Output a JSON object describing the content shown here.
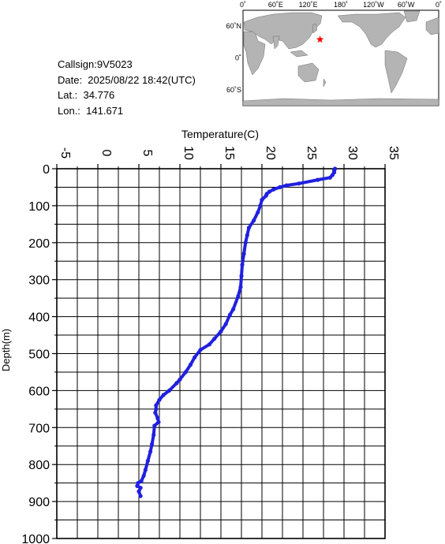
{
  "info": {
    "callsign": "Callsign:9V5023",
    "date": "Date:  2025/08/22 18:42(UTC)",
    "lat": "Lat.:  34.776",
    "lon": "Lon.:  141.671"
  },
  "map": {
    "top_labels": [
      "0˚",
      "60˚E",
      "120˚E",
      "180˚",
      "120˚W",
      "60˚W",
      "0˚"
    ],
    "left_labels": [
      "60˚N",
      "0˚",
      "60˚S"
    ],
    "marker": {
      "lat": 34.776,
      "lon": 141.671,
      "color": "#ff0000"
    },
    "land_color": "#b4b4b4",
    "ocean_color": "#ffffff"
  },
  "chart_data": {
    "type": "line",
    "xlabel": "Temperature(C)",
    "ylabel": "Depth(m)",
    "xlim": [
      -5,
      35
    ],
    "ylim": [
      0,
      1000
    ],
    "y_inverted": true,
    "x_axis_position": "top",
    "xticks": [
      "-5",
      "0",
      "5",
      "10",
      "15",
      "20",
      "25",
      "30",
      "35"
    ],
    "yticks": [
      "0",
      "100",
      "200",
      "300",
      "400",
      "500",
      "600",
      "700",
      "800",
      "900",
      "1000"
    ],
    "grid": true,
    "line_color": "#2020e0",
    "series": [
      {
        "points": [
          [
            28.9,
            0
          ],
          [
            28.8,
            5
          ],
          [
            28.8,
            10
          ],
          [
            28.6,
            17
          ],
          [
            28.3,
            24
          ],
          [
            26.8,
            30
          ],
          [
            24.5,
            40
          ],
          [
            23.0,
            45
          ],
          [
            22.2,
            50
          ],
          [
            21.4,
            56
          ],
          [
            20.9,
            62
          ],
          [
            20.6,
            68
          ],
          [
            20.5,
            73
          ],
          [
            20.0,
            84
          ],
          [
            19.8,
            100
          ],
          [
            19.5,
            118
          ],
          [
            19.0,
            140
          ],
          [
            18.4,
            160
          ],
          [
            18.2,
            180
          ],
          [
            18.0,
            200
          ],
          [
            17.8,
            230
          ],
          [
            17.6,
            260
          ],
          [
            17.5,
            290
          ],
          [
            17.4,
            320
          ],
          [
            17.1,
            345
          ],
          [
            16.5,
            380
          ],
          [
            16.1,
            395
          ],
          [
            15.6,
            420
          ],
          [
            15.0,
            440
          ],
          [
            14.2,
            460
          ],
          [
            13.6,
            475
          ],
          [
            12.5,
            490
          ],
          [
            11.8,
            510
          ],
          [
            11.3,
            530
          ],
          [
            10.7,
            550
          ],
          [
            10.0,
            570
          ],
          [
            9.6,
            580
          ],
          [
            8.7,
            600
          ],
          [
            8.0,
            612
          ],
          [
            7.5,
            625
          ],
          [
            7.1,
            640
          ],
          [
            7.1,
            650
          ],
          [
            7.0,
            660
          ],
          [
            7.3,
            675
          ],
          [
            7.4,
            685
          ],
          [
            6.9,
            695
          ],
          [
            6.8,
            720
          ],
          [
            6.6,
            745
          ],
          [
            6.4,
            765
          ],
          [
            6.1,
            790
          ],
          [
            5.8,
            815
          ],
          [
            5.6,
            830
          ],
          [
            5.3,
            845
          ],
          [
            4.9,
            850
          ],
          [
            4.8,
            858
          ],
          [
            5.2,
            863
          ],
          [
            5.0,
            873
          ],
          [
            5.2,
            885
          ]
        ]
      }
    ]
  }
}
